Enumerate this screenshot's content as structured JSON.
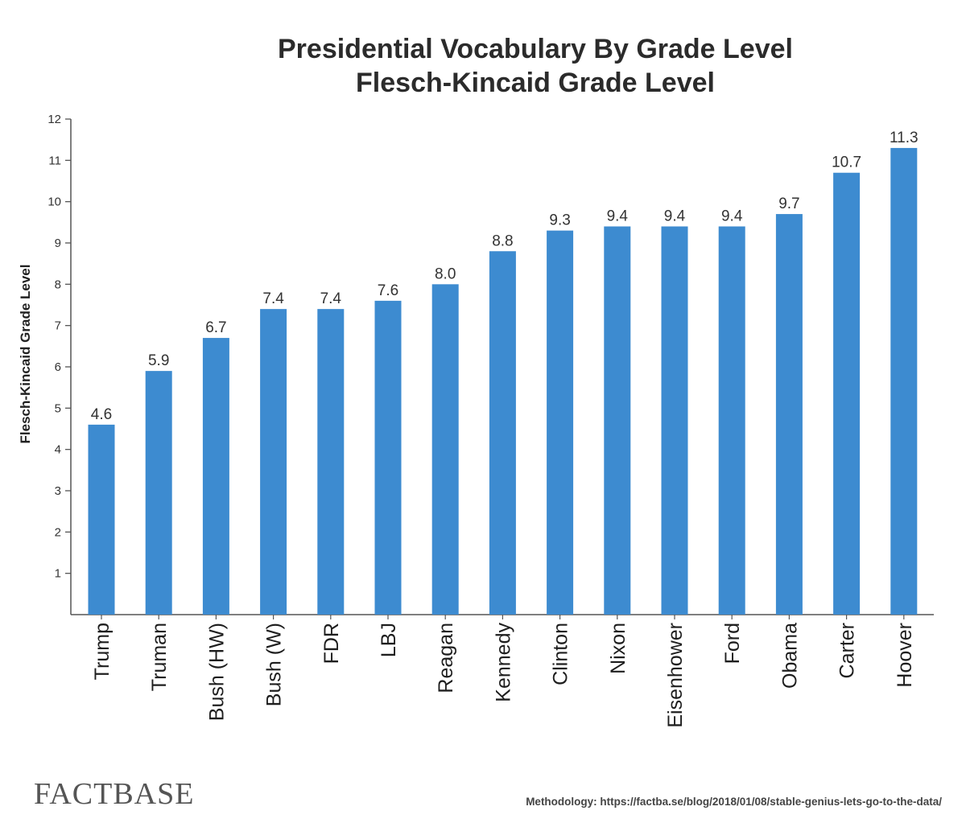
{
  "chart_data": {
    "type": "bar",
    "title": "Presidential Vocabulary By Grade Level",
    "subtitle": "Flesch-Kincaid Grade Level",
    "ylabel": "Flesch-Kincaid Grade Level",
    "xlabel": "",
    "ylim": [
      0,
      12
    ],
    "yticks": [
      1,
      2,
      3,
      4,
      5,
      6,
      7,
      8,
      9,
      10,
      11,
      12
    ],
    "categories": [
      "Trump",
      "Truman",
      "Bush (HW)",
      "Bush (W)",
      "FDR",
      "LBJ",
      "Reagan",
      "Kennedy",
      "Clinton",
      "Nixon",
      "Eisenhower",
      "Ford",
      "Obama",
      "Carter",
      "Hoover"
    ],
    "values": [
      4.6,
      5.9,
      6.7,
      7.4,
      7.4,
      7.6,
      8.0,
      8.8,
      9.3,
      9.4,
      9.4,
      9.4,
      9.7,
      10.7,
      11.3
    ],
    "value_labels": [
      "4.6",
      "5.9",
      "6.7",
      "7.4",
      "7.4",
      "7.6",
      "8.0",
      "8.8",
      "9.3",
      "9.4",
      "9.4",
      "9.4",
      "9.7",
      "10.7",
      "11.3"
    ],
    "bar_color": "#3d8bd0",
    "grid": false,
    "legend": "none"
  },
  "footer": {
    "brand": "FACTBASE",
    "methodology": "Methodology: https://factba.se/blog/2018/01/08/stable-genius-lets-go-to-the-data/"
  }
}
